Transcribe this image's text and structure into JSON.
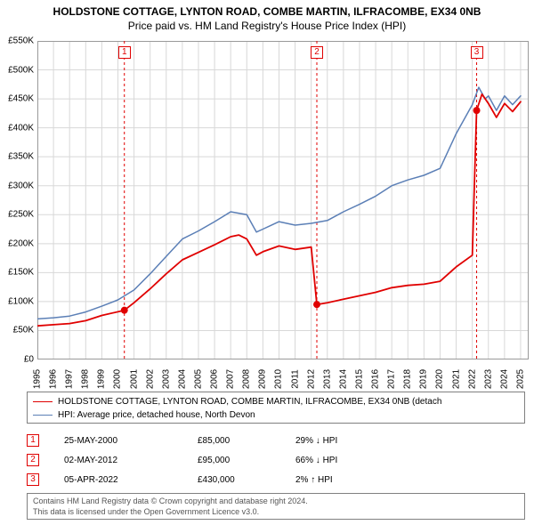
{
  "title": "HOLDSTONE COTTAGE, LYNTON ROAD, COMBE MARTIN, ILFRACOMBE, EX34 0NB",
  "subtitle": "Price paid vs. HM Land Registry's House Price Index (HPI)",
  "chart": {
    "type": "line",
    "background_color": "#ffffff",
    "grid_color": "#d8d8d8",
    "axis_color": "#9a9a9a",
    "ylim": [
      0,
      550
    ],
    "ytick_step": 50,
    "yticks": [
      "£0",
      "£50K",
      "£100K",
      "£150K",
      "£200K",
      "£250K",
      "£300K",
      "£350K",
      "£400K",
      "£450K",
      "£500K",
      "£550K"
    ],
    "xlim": [
      1995,
      2025.5
    ],
    "xticks": [
      "1995",
      "1996",
      "1997",
      "1998",
      "1999",
      "2000",
      "2001",
      "2002",
      "2003",
      "2004",
      "2005",
      "2006",
      "2007",
      "2008",
      "2009",
      "2010",
      "2011",
      "2012",
      "2013",
      "2014",
      "2015",
      "2016",
      "2017",
      "2018",
      "2019",
      "2020",
      "2021",
      "2022",
      "2023",
      "2024",
      "2025"
    ],
    "guide_color": "#e00000",
    "label_fontsize": 10
  },
  "series": {
    "hpi": {
      "label": "HPI: Average price, detached house, North Devon",
      "color": "#5b7fb6",
      "line_width": 1.5,
      "points": [
        [
          1995,
          70
        ],
        [
          1996,
          72
        ],
        [
          1997,
          75
        ],
        [
          1998,
          82
        ],
        [
          1999,
          92
        ],
        [
          2000,
          103
        ],
        [
          2001,
          120
        ],
        [
          2002,
          148
        ],
        [
          2003,
          178
        ],
        [
          2004,
          208
        ],
        [
          2005,
          222
        ],
        [
          2006,
          238
        ],
        [
          2007,
          255
        ],
        [
          2008,
          250
        ],
        [
          2008.6,
          220
        ],
        [
          2009,
          225
        ],
        [
          2010,
          238
        ],
        [
          2011,
          232
        ],
        [
          2012,
          235
        ],
        [
          2013,
          240
        ],
        [
          2014,
          255
        ],
        [
          2015,
          268
        ],
        [
          2016,
          282
        ],
        [
          2017,
          300
        ],
        [
          2018,
          310
        ],
        [
          2019,
          318
        ],
        [
          2020,
          330
        ],
        [
          2021,
          390
        ],
        [
          2022,
          440
        ],
        [
          2022.4,
          470
        ],
        [
          2022.8,
          450
        ],
        [
          2023,
          455
        ],
        [
          2023.5,
          430
        ],
        [
          2024,
          455
        ],
        [
          2024.5,
          440
        ],
        [
          2025,
          455
        ]
      ]
    },
    "subject": {
      "label": "HOLDSTONE COTTAGE, LYNTON ROAD, COMBE MARTIN, ILFRACOMBE, EX34 0NB (detach",
      "color": "#e00000",
      "line_width": 1.8,
      "points": [
        [
          1995,
          58
        ],
        [
          1996,
          60
        ],
        [
          1997,
          62
        ],
        [
          1998,
          67
        ],
        [
          1999,
          76
        ],
        [
          2000.4,
          85
        ],
        [
          2001,
          98
        ],
        [
          2002,
          122
        ],
        [
          2003,
          148
        ],
        [
          2004,
          172
        ],
        [
          2005,
          185
        ],
        [
          2006,
          198
        ],
        [
          2007,
          212
        ],
        [
          2007.5,
          215
        ],
        [
          2008,
          208
        ],
        [
          2008.6,
          180
        ],
        [
          2009,
          186
        ],
        [
          2010,
          196
        ],
        [
          2011,
          190
        ],
        [
          2012,
          194
        ],
        [
          2012.35,
          95
        ],
        [
          2013,
          98
        ],
        [
          2014,
          104
        ],
        [
          2015,
          110
        ],
        [
          2016,
          116
        ],
        [
          2017,
          124
        ],
        [
          2018,
          128
        ],
        [
          2019,
          130
        ],
        [
          2020,
          135
        ],
        [
          2021,
          160
        ],
        [
          2022,
          180
        ],
        [
          2022.27,
          430
        ],
        [
          2022.6,
          458
        ],
        [
          2023,
          442
        ],
        [
          2023.5,
          418
        ],
        [
          2024,
          442
        ],
        [
          2024.5,
          428
        ],
        [
          2025,
          445
        ]
      ]
    }
  },
  "sale_markers": [
    {
      "n": "1",
      "year": 2000.4,
      "price_y": 85,
      "date": "25-MAY-2000",
      "price": "£85,000",
      "delta": "29% ↓ HPI"
    },
    {
      "n": "2",
      "year": 2012.35,
      "price_y": 95,
      "date": "02-MAY-2012",
      "price": "£95,000",
      "delta": "66% ↓ HPI"
    },
    {
      "n": "3",
      "year": 2022.27,
      "price_y": 430,
      "date": "05-APR-2022",
      "price": "£430,000",
      "delta": "2% ↑ HPI"
    }
  ],
  "legend": [
    {
      "key": "subject"
    },
    {
      "key": "hpi"
    }
  ],
  "attribution": {
    "line1": "Contains HM Land Registry data © Crown copyright and database right 2024.",
    "line2": "This data is licensed under the Open Government Licence v3.0."
  }
}
